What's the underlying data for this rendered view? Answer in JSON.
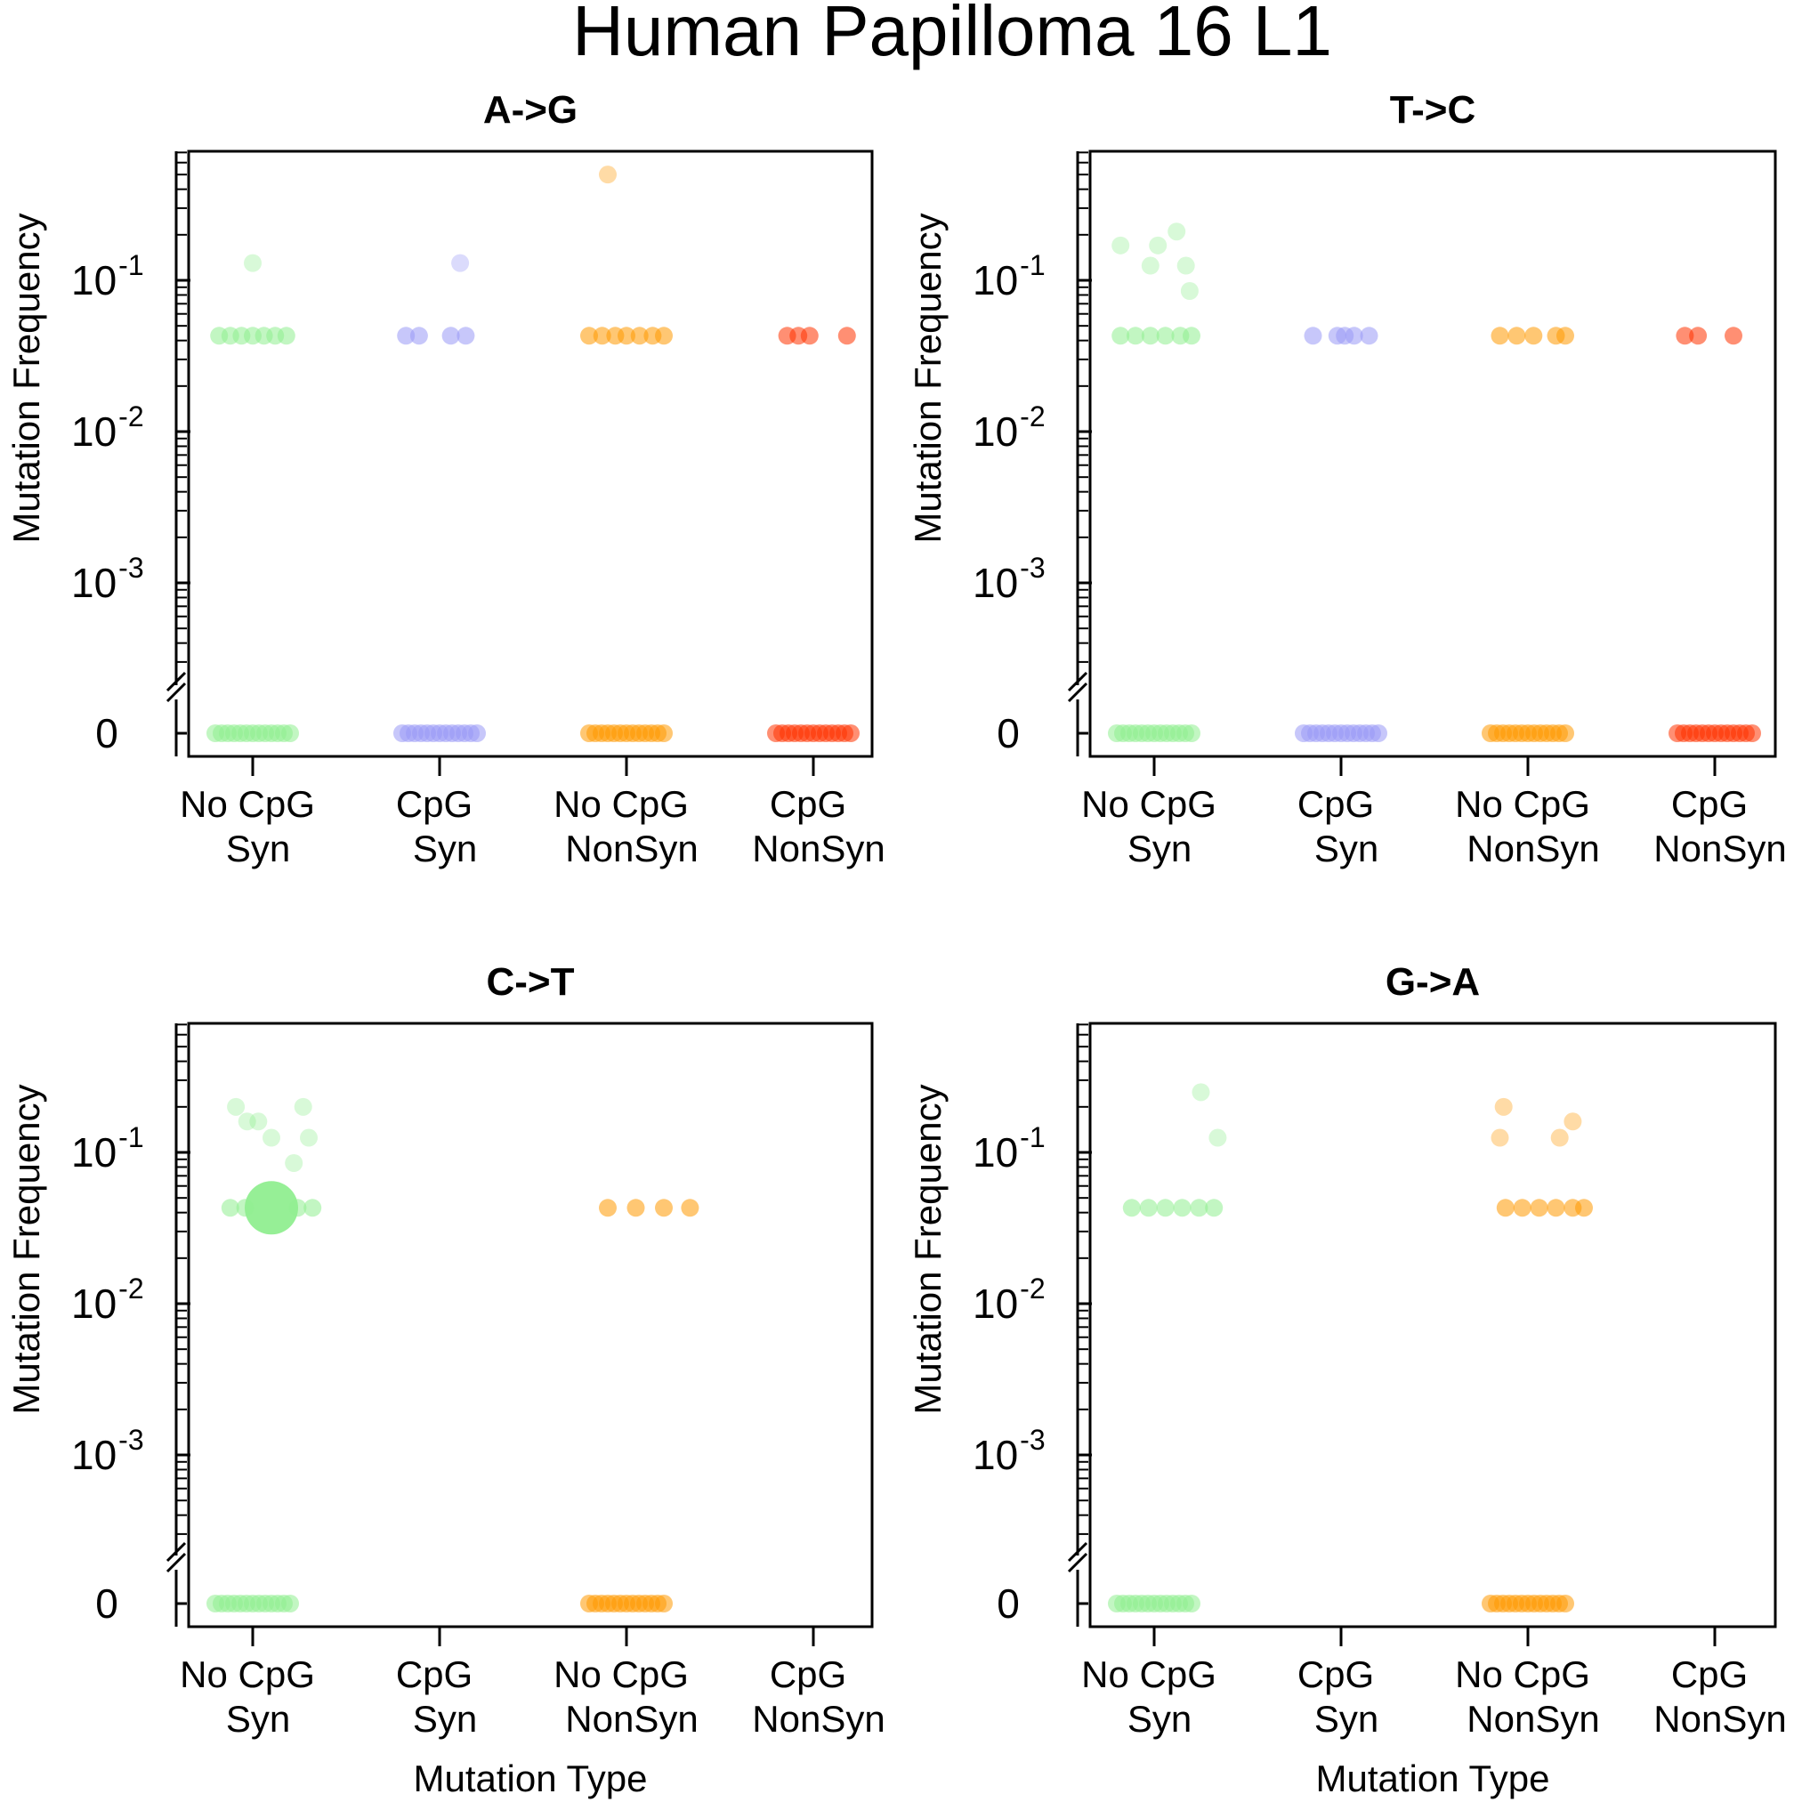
{
  "figure": {
    "title": "Human Papilloma 16 L1"
  },
  "colors": {
    "no_cpg_syn": "#90EE90",
    "cpg_syn": "#9999F5",
    "no_cpg_nonsyn": "#FF9900",
    "cpg_nonsyn": "#FF3300"
  },
  "chart_data": [
    {
      "type": "scatter",
      "title": "A->G",
      "xlabel": "",
      "ylabel": "Mutation Frequency",
      "y_scale": "log",
      "y_ticks": [
        "0",
        "10-3",
        "10-2",
        "10-1"
      ],
      "categories": [
        "No CpG\nSyn",
        "CpG\nSyn",
        "No CpG\nNonSyn",
        "CpG\nNonSyn"
      ],
      "series": [
        {
          "category": "No CpG\nSyn",
          "zeros": 1,
          "points": [
            {
              "x": 1.0,
              "y": 0.13
            },
            {
              "x": 0.82,
              "y": 0.043
            },
            {
              "x": 0.88,
              "y": 0.043
            },
            {
              "x": 0.94,
              "y": 0.043
            },
            {
              "x": 1.0,
              "y": 0.043
            },
            {
              "x": 1.06,
              "y": 0.043
            },
            {
              "x": 1.12,
              "y": 0.043
            },
            {
              "x": 1.18,
              "y": 0.043
            }
          ]
        },
        {
          "category": "CpG\nSyn",
          "zeros": 1,
          "points": [
            {
              "x": 2.11,
              "y": 0.13
            },
            {
              "x": 1.82,
              "y": 0.043
            },
            {
              "x": 1.89,
              "y": 0.043
            },
            {
              "x": 2.06,
              "y": 0.043
            },
            {
              "x": 2.14,
              "y": 0.043
            }
          ]
        },
        {
          "category": "No CpG\nNonSyn",
          "zeros": 1,
          "points": [
            {
              "x": 2.9,
              "y": 0.5
            },
            {
              "x": 2.8,
              "y": 0.043
            },
            {
              "x": 2.87,
              "y": 0.043
            },
            {
              "x": 2.94,
              "y": 0.043
            },
            {
              "x": 3.0,
              "y": 0.043
            },
            {
              "x": 3.07,
              "y": 0.043
            },
            {
              "x": 3.14,
              "y": 0.043
            },
            {
              "x": 3.2,
              "y": 0.043
            }
          ]
        },
        {
          "category": "CpG\nNonSyn",
          "zeros": 1,
          "points": [
            {
              "x": 3.86,
              "y": 0.043
            },
            {
              "x": 3.92,
              "y": 0.043
            },
            {
              "x": 3.98,
              "y": 0.043
            },
            {
              "x": 4.18,
              "y": 0.043
            }
          ]
        }
      ]
    },
    {
      "type": "scatter",
      "title": "T->C",
      "xlabel": "",
      "ylabel": "Mutation Frequency",
      "y_scale": "log",
      "y_ticks": [
        "0",
        "10-3",
        "10-2",
        "10-1"
      ],
      "categories": [
        "No CpG\nSyn",
        "CpG\nSyn",
        "No CpG\nNonSyn",
        "CpG\nNonSyn"
      ],
      "series": [
        {
          "category": "No CpG\nSyn",
          "zeros": 1,
          "points": [
            {
              "x": 0.82,
              "y": 0.17
            },
            {
              "x": 0.98,
              "y": 0.125
            },
            {
              "x": 1.02,
              "y": 0.17
            },
            {
              "x": 1.12,
              "y": 0.21
            },
            {
              "x": 1.17,
              "y": 0.125
            },
            {
              "x": 1.19,
              "y": 0.085
            },
            {
              "x": 0.82,
              "y": 0.043
            },
            {
              "x": 0.9,
              "y": 0.043
            },
            {
              "x": 0.98,
              "y": 0.043
            },
            {
              "x": 1.06,
              "y": 0.043
            },
            {
              "x": 1.14,
              "y": 0.043
            },
            {
              "x": 1.2,
              "y": 0.043
            }
          ]
        },
        {
          "category": "CpG\nSyn",
          "zeros": 1,
          "points": [
            {
              "x": 1.85,
              "y": 0.043
            },
            {
              "x": 1.98,
              "y": 0.043
            },
            {
              "x": 2.02,
              "y": 0.043
            },
            {
              "x": 2.07,
              "y": 0.043
            },
            {
              "x": 2.15,
              "y": 0.043
            }
          ]
        },
        {
          "category": "No CpG\nNonSyn",
          "zeros": 1,
          "points": [
            {
              "x": 2.85,
              "y": 0.043
            },
            {
              "x": 2.94,
              "y": 0.043
            },
            {
              "x": 3.03,
              "y": 0.043
            },
            {
              "x": 3.15,
              "y": 0.043
            },
            {
              "x": 3.2,
              "y": 0.043
            }
          ]
        },
        {
          "category": "CpG\nNonSyn",
          "zeros": 1,
          "points": [
            {
              "x": 3.84,
              "y": 0.043
            },
            {
              "x": 3.91,
              "y": 0.043
            },
            {
              "x": 4.1,
              "y": 0.043
            }
          ]
        }
      ]
    },
    {
      "type": "scatter",
      "title": "C->T",
      "xlabel": "Mutation Type",
      "ylabel": "Mutation Frequency",
      "y_scale": "log",
      "y_ticks": [
        "0",
        "10-3",
        "10-2",
        "10-1"
      ],
      "categories": [
        "No CpG\nSyn",
        "CpG\nSyn",
        "No CpG\nNonSyn",
        "CpG\nNonSyn"
      ],
      "series": [
        {
          "category": "No CpG\nSyn",
          "zeros": 1,
          "points": [
            {
              "x": 0.91,
              "y": 0.2
            },
            {
              "x": 0.97,
              "y": 0.16
            },
            {
              "x": 1.03,
              "y": 0.16
            },
            {
              "x": 1.1,
              "y": 0.125
            },
            {
              "x": 1.22,
              "y": 0.085
            },
            {
              "x": 1.27,
              "y": 0.2
            },
            {
              "x": 1.3,
              "y": 0.125
            },
            {
              "x": 0.88,
              "y": 0.043
            },
            {
              "x": 0.96,
              "y": 0.043
            },
            {
              "x": 1.24,
              "y": 0.043
            },
            {
              "x": 1.32,
              "y": 0.043
            },
            {
              "x": 1.1,
              "y": 0.043,
              "large": true
            }
          ]
        },
        {
          "category": "CpG\nSyn",
          "zeros": 0,
          "points": []
        },
        {
          "category": "No CpG\nNonSyn",
          "zeros": 1,
          "points": [
            {
              "x": 2.9,
              "y": 0.043
            },
            {
              "x": 3.05,
              "y": 0.043
            },
            {
              "x": 3.2,
              "y": 0.043
            },
            {
              "x": 3.34,
              "y": 0.043
            }
          ]
        },
        {
          "category": "CpG\nNonSyn",
          "zeros": 0,
          "points": []
        }
      ]
    },
    {
      "type": "scatter",
      "title": "G->A",
      "xlabel": "Mutation Type",
      "ylabel": "Mutation Frequency",
      "y_scale": "log",
      "y_ticks": [
        "0",
        "10-3",
        "10-2",
        "10-1"
      ],
      "categories": [
        "No CpG\nSyn",
        "CpG\nSyn",
        "No CpG\nNonSyn",
        "CpG\nNonSyn"
      ],
      "series": [
        {
          "category": "No CpG\nSyn",
          "zeros": 1,
          "points": [
            {
              "x": 1.25,
              "y": 0.25
            },
            {
              "x": 1.34,
              "y": 0.125
            },
            {
              "x": 0.88,
              "y": 0.043
            },
            {
              "x": 0.97,
              "y": 0.043
            },
            {
              "x": 1.06,
              "y": 0.043
            },
            {
              "x": 1.15,
              "y": 0.043
            },
            {
              "x": 1.24,
              "y": 0.043
            },
            {
              "x": 1.32,
              "y": 0.043
            }
          ]
        },
        {
          "category": "CpG\nSyn",
          "zeros": 0,
          "points": []
        },
        {
          "category": "No CpG\nNonSyn",
          "zeros": 1,
          "points": [
            {
              "x": 2.87,
              "y": 0.2
            },
            {
              "x": 2.85,
              "y": 0.125
            },
            {
              "x": 3.17,
              "y": 0.125
            },
            {
              "x": 3.24,
              "y": 0.16
            },
            {
              "x": 2.88,
              "y": 0.043
            },
            {
              "x": 2.97,
              "y": 0.043
            },
            {
              "x": 3.06,
              "y": 0.043
            },
            {
              "x": 3.15,
              "y": 0.043
            },
            {
              "x": 3.24,
              "y": 0.043
            },
            {
              "x": 3.3,
              "y": 0.043
            }
          ]
        },
        {
          "category": "CpG\nNonSyn",
          "zeros": 0,
          "points": []
        }
      ]
    }
  ]
}
